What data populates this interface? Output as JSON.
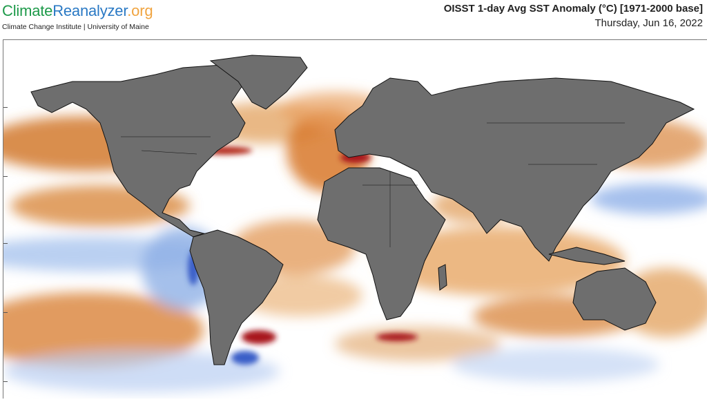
{
  "header": {
    "logo": {
      "part1": "Climate",
      "part2": "Reanalyzer",
      "part3": ".org"
    },
    "institute": "Climate Change Institute | University of Maine",
    "title": "OISST 1-day Avg SST Anomaly (°C) [1971-2000 base]",
    "date": "Thursday, Jun 16, 2022"
  },
  "map": {
    "variable": "SST anomaly",
    "colors": {
      "land": "#6e6e6e",
      "warm": "#d8782a",
      "hot": "#a8141a",
      "cool": "#8eb2e8",
      "cold": "#3a5fc8",
      "neutral": "#ffffff"
    }
  }
}
